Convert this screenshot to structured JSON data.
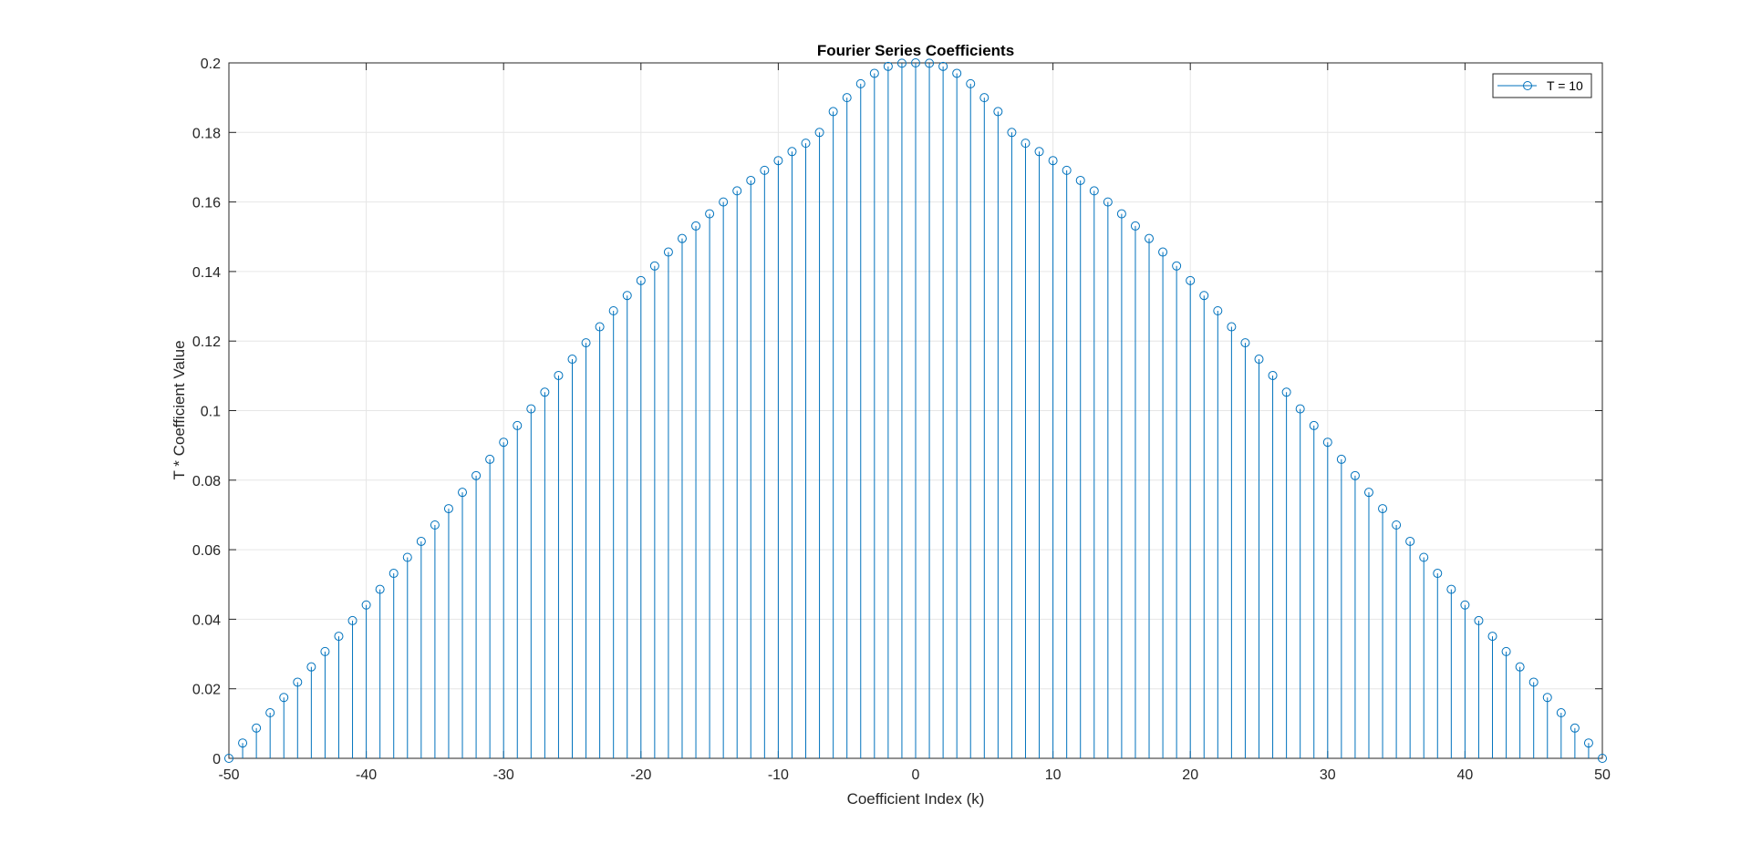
{
  "chart_data": {
    "type": "stem",
    "title": "Fourier Series Coefficients",
    "xlabel": "Coefficient Index (k)",
    "ylabel": "T * Coefficient Value",
    "xlim": [
      -50,
      50
    ],
    "ylim": [
      0,
      0.2
    ],
    "xticks": [
      -50,
      -40,
      -30,
      -20,
      -10,
      0,
      10,
      20,
      30,
      40,
      50
    ],
    "xtick_labels": [
      "-50",
      "-40",
      "-30",
      "-20",
      "-10",
      "0",
      "10",
      "20",
      "30",
      "40",
      "50"
    ],
    "yticks": [
      0,
      0.02,
      0.04,
      0.06,
      0.08,
      0.1,
      0.12,
      0.14,
      0.16,
      0.18,
      0.2
    ],
    "ytick_labels": [
      "0",
      "0.02",
      "0.04",
      "0.06",
      "0.08",
      "0.1",
      "0.12",
      "0.14",
      "0.16",
      "0.18",
      "0.2"
    ],
    "grid": true,
    "legend_position": "top-right",
    "series": [
      {
        "name": "T = 10",
        "color": "#0072BD",
        "marker": "circle",
        "x": [
          -50,
          -49,
          -48,
          -47,
          -46,
          -45,
          -44,
          -43,
          -42,
          -41,
          -40,
          -39,
          -38,
          -37,
          -36,
          -35,
          -34,
          -33,
          -32,
          -31,
          -30,
          -29,
          -28,
          -27,
          -26,
          -25,
          -24,
          -23,
          -22,
          -21,
          -20,
          -19,
          -18,
          -17,
          -16,
          -15,
          -14,
          -13,
          -12,
          -11,
          -10,
          -9,
          -8,
          -7,
          -6,
          -5,
          -4,
          -3,
          -2,
          -1,
          0,
          1,
          2,
          3,
          4,
          5,
          6,
          7,
          8,
          9,
          10,
          11,
          12,
          13,
          14,
          15,
          16,
          17,
          18,
          19,
          20,
          21,
          22,
          23,
          24,
          25,
          26,
          27,
          28,
          29,
          30,
          31,
          32,
          33,
          34,
          35,
          36,
          37,
          38,
          39,
          40,
          41,
          42,
          43,
          44,
          45,
          46,
          47,
          48,
          49,
          50
        ],
        "y": [
          0,
          0.0044,
          0.0087,
          0.0131,
          0.0175,
          0.0219,
          0.0263,
          0.0307,
          0.0351,
          0.0396,
          0.0441,
          0.0486,
          0.0532,
          0.0578,
          0.0624,
          0.0671,
          0.0718,
          0.0765,
          0.0813,
          0.086,
          0.0909,
          0.0957,
          0.1005,
          0.1053,
          0.1101,
          0.1148,
          0.1195,
          0.1241,
          0.1287,
          0.1331,
          0.1374,
          0.1416,
          0.1456,
          0.1495,
          0.1531,
          0.1566,
          0.16,
          0.1632,
          0.1662,
          0.1691,
          0.1719,
          0.1745,
          0.1769,
          0.18,
          0.186,
          0.19,
          0.194,
          0.197,
          0.199,
          0.1999,
          0.2,
          0.1999,
          0.199,
          0.197,
          0.194,
          0.19,
          0.186,
          0.18,
          0.1769,
          0.1745,
          0.1719,
          0.1691,
          0.1662,
          0.1632,
          0.16,
          0.1566,
          0.1531,
          0.1495,
          0.1456,
          0.1416,
          0.1374,
          0.1331,
          0.1287,
          0.1241,
          0.1195,
          0.1148,
          0.1101,
          0.1053,
          0.1005,
          0.0957,
          0.0909,
          0.086,
          0.0813,
          0.0765,
          0.0718,
          0.0671,
          0.0624,
          0.0578,
          0.0532,
          0.0486,
          0.0441,
          0.0396,
          0.0351,
          0.0307,
          0.0263,
          0.0219,
          0.0175,
          0.0131,
          0.0087,
          0.0044,
          0
        ]
      }
    ]
  }
}
